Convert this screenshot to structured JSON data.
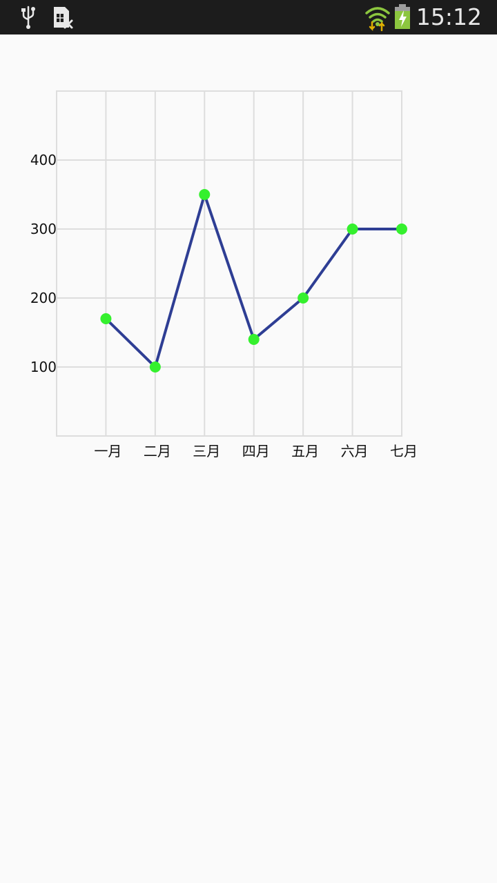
{
  "status_bar": {
    "time": "15:12",
    "icons": [
      "usb-icon",
      "sim-card-missing-icon",
      "wifi-data-icon",
      "battery-charging-icon"
    ]
  },
  "chart_data": {
    "type": "line",
    "categories": [
      "一月",
      "二月",
      "三月",
      "四月",
      "五月",
      "六月",
      "七月"
    ],
    "series": [
      {
        "values": [
          170,
          100,
          350,
          140,
          200,
          300,
          300
        ]
      }
    ],
    "ylim": [
      0,
      500
    ],
    "yticks": [
      100,
      200,
      300,
      400
    ],
    "grid": true,
    "line_color": "#2e3e94",
    "point_color": "#35f02e",
    "grid_color": "#dddddd",
    "title": "",
    "xlabel": "",
    "ylabel": ""
  }
}
